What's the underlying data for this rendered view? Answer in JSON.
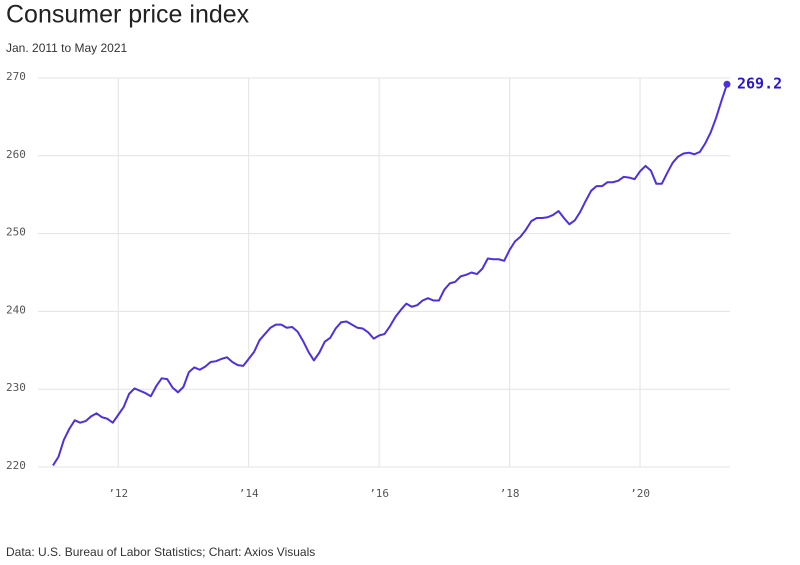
{
  "chart_data": {
    "type": "line",
    "title": "Consumer price index",
    "subtitle": "Jan. 2011 to May 2021",
    "source": "Data: U.S. Bureau of Labor Statistics; Chart: Axios Visuals",
    "x": [
      "2011-01",
      "2011-02",
      "2011-03",
      "2011-04",
      "2011-05",
      "2011-06",
      "2011-07",
      "2011-08",
      "2011-09",
      "2011-10",
      "2011-11",
      "2011-12",
      "2012-01",
      "2012-02",
      "2012-03",
      "2012-04",
      "2012-05",
      "2012-06",
      "2012-07",
      "2012-08",
      "2012-09",
      "2012-10",
      "2012-11",
      "2012-12",
      "2013-01",
      "2013-02",
      "2013-03",
      "2013-04",
      "2013-05",
      "2013-06",
      "2013-07",
      "2013-08",
      "2013-09",
      "2013-10",
      "2013-11",
      "2013-12",
      "2014-01",
      "2014-02",
      "2014-03",
      "2014-04",
      "2014-05",
      "2014-06",
      "2014-07",
      "2014-08",
      "2014-09",
      "2014-10",
      "2014-11",
      "2014-12",
      "2015-01",
      "2015-02",
      "2015-03",
      "2015-04",
      "2015-05",
      "2015-06",
      "2015-07",
      "2015-08",
      "2015-09",
      "2015-10",
      "2015-11",
      "2015-12",
      "2016-01",
      "2016-02",
      "2016-03",
      "2016-04",
      "2016-05",
      "2016-06",
      "2016-07",
      "2016-08",
      "2016-09",
      "2016-10",
      "2016-11",
      "2016-12",
      "2017-01",
      "2017-02",
      "2017-03",
      "2017-04",
      "2017-05",
      "2017-06",
      "2017-07",
      "2017-08",
      "2017-09",
      "2017-10",
      "2017-11",
      "2017-12",
      "2018-01",
      "2018-02",
      "2018-03",
      "2018-04",
      "2018-05",
      "2018-06",
      "2018-07",
      "2018-08",
      "2018-09",
      "2018-10",
      "2018-11",
      "2018-12",
      "2019-01",
      "2019-02",
      "2019-03",
      "2019-04",
      "2019-05",
      "2019-06",
      "2019-07",
      "2019-08",
      "2019-09",
      "2019-10",
      "2019-11",
      "2019-12",
      "2020-01",
      "2020-02",
      "2020-03",
      "2020-04",
      "2020-05",
      "2020-06",
      "2020-07",
      "2020-08",
      "2020-09",
      "2020-10",
      "2020-11",
      "2020-12",
      "2021-01",
      "2021-02",
      "2021-03",
      "2021-04",
      "2021-05"
    ],
    "series": [
      {
        "color": "#4f30e0",
        "values": [
          220.2,
          221.3,
          223.5,
          224.9,
          226.0,
          225.7,
          225.9,
          226.5,
          226.9,
          226.4,
          226.2,
          225.7,
          226.7,
          227.7,
          229.4,
          230.1,
          229.8,
          229.5,
          229.1,
          230.4,
          231.4,
          231.3,
          230.2,
          229.6,
          230.3,
          232.2,
          232.8,
          232.5,
          232.9,
          233.5,
          233.6,
          233.9,
          234.1,
          233.5,
          233.1,
          233.0,
          233.9,
          234.8,
          236.3,
          237.1,
          237.9,
          238.3,
          238.3,
          237.9,
          238.0,
          237.4,
          236.2,
          234.8,
          233.7,
          234.7,
          236.1,
          236.6,
          237.8,
          238.6,
          238.7,
          238.3,
          237.9,
          237.8,
          237.3,
          236.5,
          236.9,
          237.1,
          238.1,
          239.3,
          240.2,
          241.0,
          240.6,
          240.8,
          241.4,
          241.7,
          241.4,
          241.4,
          242.8,
          243.6,
          243.8,
          244.5,
          244.7,
          245.0,
          244.8,
          245.5,
          246.8,
          246.7,
          246.7,
          246.5,
          247.9,
          249.0,
          249.6,
          250.5,
          251.6,
          252.0,
          252.0,
          252.1,
          252.4,
          252.9,
          252.0,
          251.2,
          251.7,
          252.8,
          254.2,
          255.5,
          256.1,
          256.1,
          256.6,
          256.6,
          256.8,
          257.3,
          257.2,
          257.0,
          258.0,
          258.7,
          258.1,
          256.4,
          256.4,
          257.8,
          259.1,
          259.9,
          260.3,
          260.4,
          260.2,
          260.5,
          261.6,
          263.0,
          264.9,
          267.1,
          269.2
        ]
      }
    ],
    "xlim": [
      "2011-01",
      "2021-05"
    ],
    "xticks": [
      {
        "value": "2012-01",
        "label": "’12"
      },
      {
        "value": "2014-01",
        "label": "’14"
      },
      {
        "value": "2016-01",
        "label": "’16"
      },
      {
        "value": "2018-01",
        "label": "’18"
      },
      {
        "value": "2020-01",
        "label": "’20"
      }
    ],
    "ylim": [
      220,
      270
    ],
    "yticks": [
      220,
      230,
      240,
      250,
      260,
      270
    ],
    "grid": true,
    "label_color": "#2a16d6"
  }
}
